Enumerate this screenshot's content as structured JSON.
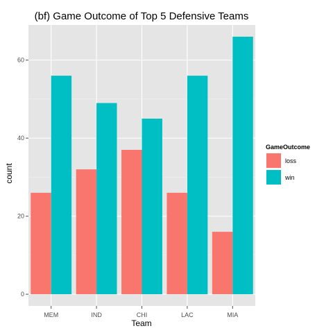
{
  "chart_data": {
    "type": "bar",
    "title": "(bf) Game Outcome of Top 5 Defensive Teams",
    "xlabel": "Team",
    "ylabel": "count",
    "categories": [
      "MEM",
      "IND",
      "CHI",
      "LAC",
      "MIA"
    ],
    "series": [
      {
        "name": "loss",
        "values": [
          26,
          32,
          37,
          26,
          16
        ],
        "color": "#F8766D"
      },
      {
        "name": "win",
        "values": [
          56,
          49,
          45,
          56,
          66
        ],
        "color": "#00BFC4"
      }
    ],
    "ylim": [
      -3,
      69
    ],
    "yticks": [
      0,
      20,
      40,
      60
    ],
    "grid": true,
    "legend": {
      "title": "GameOutcome",
      "placement": "right"
    },
    "panel_background": "#E5E5E5",
    "grid_color": "#FFFFFF"
  }
}
